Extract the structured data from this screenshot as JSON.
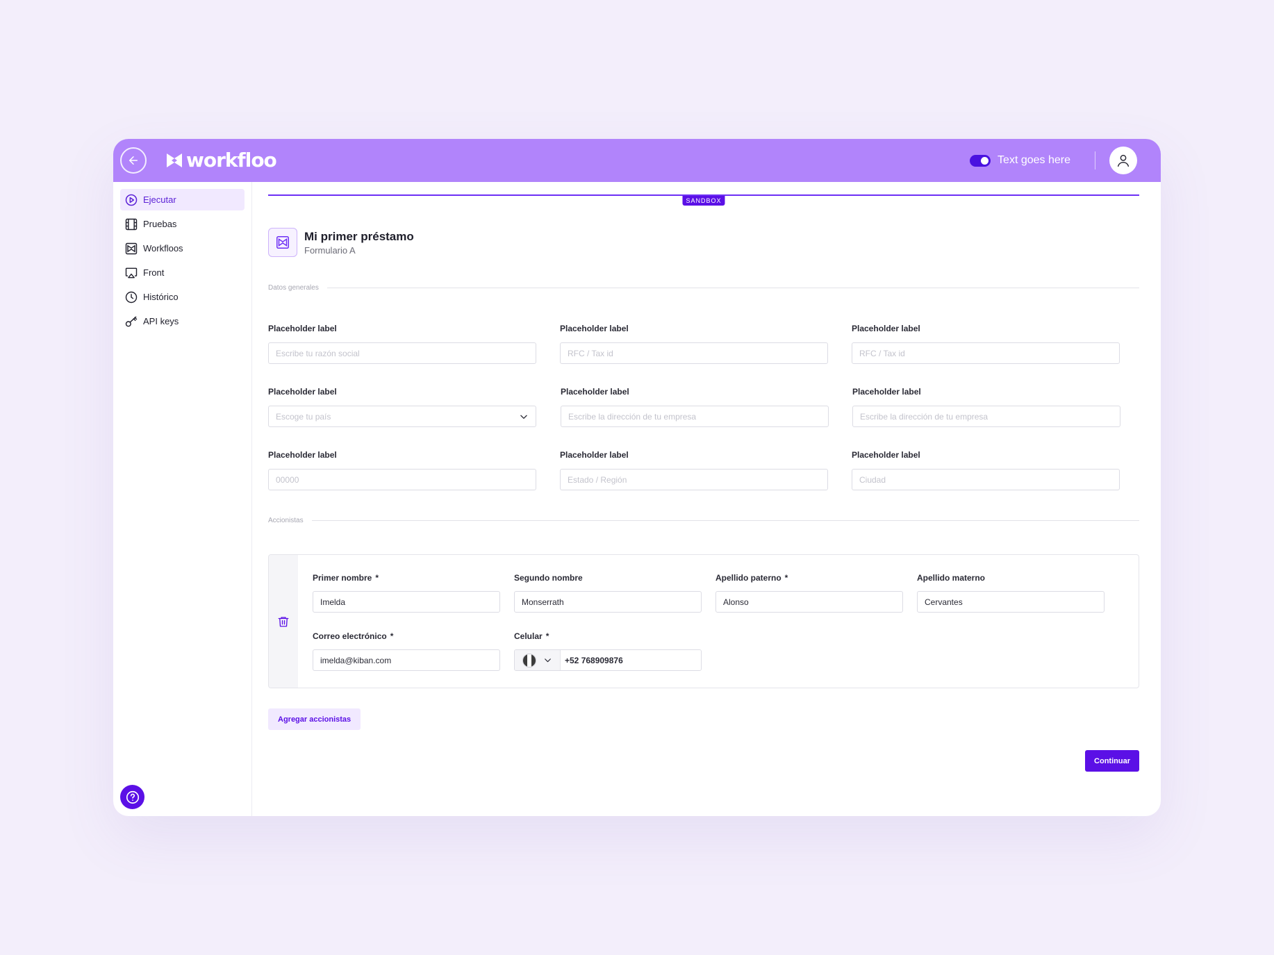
{
  "app": {
    "name": "workfloo",
    "accent": "#b184fb",
    "primary": "#5b10e6"
  },
  "topbar": {
    "back_icon": "arrow-left-icon",
    "toggle_on": true,
    "toggle_text": "Text goes here",
    "avatar_icon": "user-icon"
  },
  "sidebar": {
    "items": [
      {
        "label": "Ejecutar",
        "icon": "play-circle-icon",
        "active": true
      },
      {
        "label": "Pruebas",
        "icon": "film-icon",
        "active": false
      },
      {
        "label": "Workfloos",
        "icon": "workflow-icon",
        "active": false
      },
      {
        "label": "Front",
        "icon": "screen-cast-icon",
        "active": false
      },
      {
        "label": "Histórico",
        "icon": "clock-icon",
        "active": false
      },
      {
        "label": "API keys",
        "icon": "key-icon",
        "active": false
      }
    ],
    "help_icon": "help-circle-icon"
  },
  "environment": {
    "badge": "SANDBOX"
  },
  "form": {
    "title": "Mi primer préstamo",
    "subtitle": "Formulario A",
    "sections": {
      "general": "Datos generales",
      "shareholders": "Accionistas"
    },
    "fields": [
      {
        "label": "Placeholder label",
        "placeholder": "Escribe tu razón social",
        "type": "text"
      },
      {
        "label": "Placeholder label",
        "placeholder": "RFC / Tax id",
        "type": "text"
      },
      {
        "label": "Placeholder label",
        "placeholder": "RFC / Tax id",
        "type": "text"
      },
      {
        "label": "Placeholder label",
        "placeholder": "Escoge tu país",
        "type": "select"
      },
      {
        "label": "Placeholder label",
        "placeholder": "Escribe la dirección de tu empresa",
        "type": "text"
      },
      {
        "label": "Placeholder label",
        "placeholder": "Escribe la dirección de tu empresa",
        "type": "text"
      },
      {
        "label": "Placeholder label",
        "placeholder": "00000",
        "type": "text"
      },
      {
        "label": "Placeholder label",
        "placeholder": "Estado / Región",
        "type": "text"
      },
      {
        "label": "Placeholder label",
        "placeholder": "Ciudad",
        "type": "text"
      }
    ],
    "shareholder": {
      "first_name": {
        "label": "Primer nombre",
        "required": "*",
        "value": "Imelda"
      },
      "second_name": {
        "label": "Segundo nombre",
        "value": "Monserrath"
      },
      "paternal_last_name": {
        "label": "Apellido paterno",
        "required": "*",
        "value": "Alonso"
      },
      "maternal_last_name": {
        "label": "Apellido materno",
        "value": "Cervantes"
      },
      "email": {
        "label": "Correo electrónico",
        "required": "*",
        "value": "imelda@kiban.com"
      },
      "phone": {
        "label": "Celular",
        "required": "*",
        "value": "+52 768909876",
        "country_icon": "mexico-flag-icon"
      }
    },
    "add_shareholder_label": "Agregar accionistas",
    "continue_label": "Continuar"
  }
}
